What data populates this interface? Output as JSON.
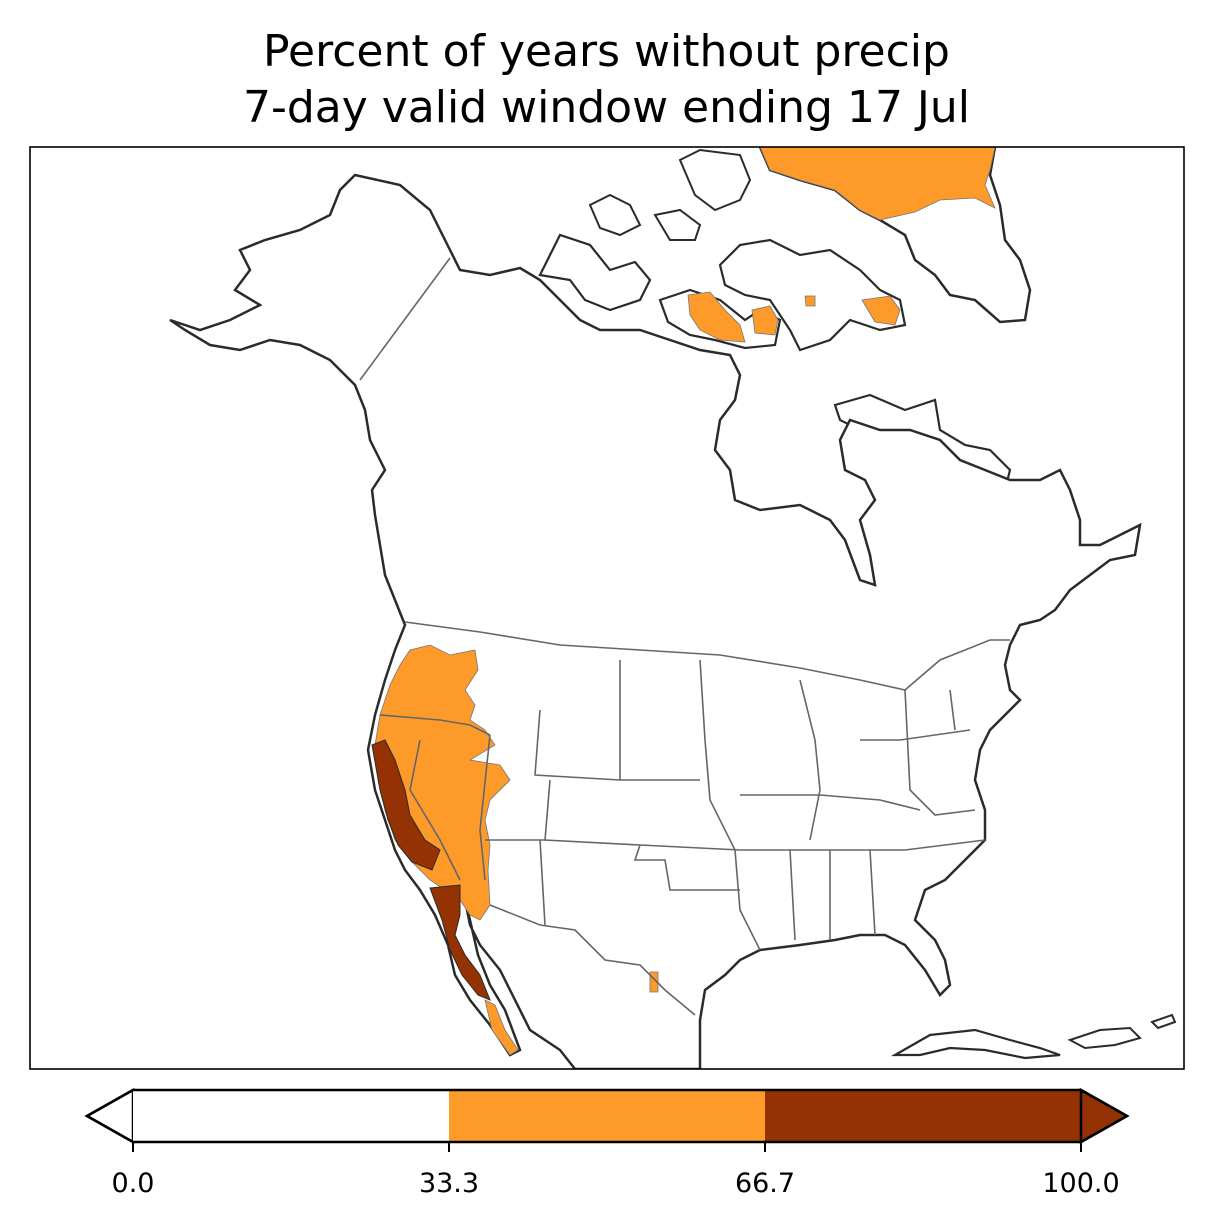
{
  "title": {
    "line1": "Percent of years without precip",
    "line2": "7-day valid window ending 17 Jul"
  },
  "colors": {
    "low": "#ffffff",
    "mid": "#fd9a2a",
    "high": "#943204",
    "coast": "#2b2b2b",
    "border": "#666666"
  },
  "colorbar": {
    "ticks": [
      "0.0",
      "33.3",
      "66.7",
      "100.0"
    ],
    "bins": [
      {
        "range": "0.0-33.3",
        "color": "#ffffff"
      },
      {
        "range": "33.3-66.7",
        "color": "#fd9a2a"
      },
      {
        "range": "66.7-100.0",
        "color": "#943204"
      }
    ],
    "extend": "both"
  },
  "map": {
    "region": "North America",
    "projection": "Lambert Conformal",
    "highlighted_areas": [
      {
        "area": "California coast ranges & Baja",
        "category": "66.7-100.0"
      },
      {
        "area": "Oregon / Washington interior, Nevada, Baja",
        "category": "33.3-66.7"
      },
      {
        "area": "Greenland north coast & Canadian Arctic islands",
        "category": "33.3-66.7"
      }
    ]
  }
}
